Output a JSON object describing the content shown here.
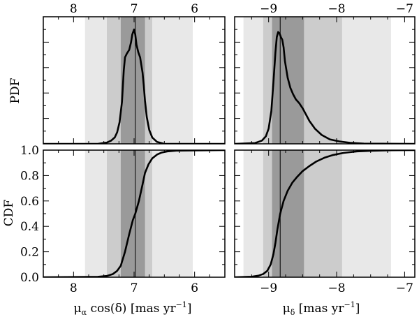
{
  "chart_data": [
    {
      "id": "pmra_pdf",
      "type": "line",
      "ylabel": "PDF",
      "x_reversed": true,
      "xlim": [
        8.5,
        5.5
      ],
      "ylim": [
        0,
        1.0
      ],
      "ticks_top": [
        "8",
        "7",
        "6"
      ],
      "tick_values_top": [
        8,
        7,
        6
      ],
      "bands": [
        {
          "from": 7.81,
          "to": 6.03,
          "shade": "#e8e8e8"
        },
        {
          "from": 7.45,
          "to": 6.7,
          "shade": "#cccccc"
        },
        {
          "from": 7.22,
          "to": 6.82,
          "shade": "#9a9a9a"
        }
      ],
      "median": 6.98,
      "series": [
        {
          "x": [
            8.5,
            7.6,
            7.45,
            7.38,
            7.32,
            7.28,
            7.24,
            7.2,
            7.17,
            7.15,
            7.12,
            7.08,
            7.05,
            7.03,
            7.0,
            6.98,
            6.96,
            6.93,
            6.9,
            6.88,
            6.86,
            6.84,
            6.82,
            6.79,
            6.75,
            6.7,
            6.62,
            6.5,
            6.2,
            5.5
          ],
          "y": [
            0.0,
            0.0,
            0.01,
            0.025,
            0.05,
            0.09,
            0.17,
            0.33,
            0.58,
            0.68,
            0.71,
            0.74,
            0.8,
            0.86,
            0.9,
            0.86,
            0.78,
            0.72,
            0.68,
            0.62,
            0.56,
            0.46,
            0.34,
            0.21,
            0.11,
            0.05,
            0.015,
            0.0,
            0.0,
            0.0
          ]
        }
      ]
    },
    {
      "id": "pmdec_pdf",
      "type": "line",
      "x_reversed": false,
      "xlim": [
        -9.5,
        -6.85
      ],
      "ylim": [
        0,
        1.0
      ],
      "ticks_top": [
        "−9",
        "−8",
        "−7"
      ],
      "tick_values_top": [
        -9,
        -8,
        -7
      ],
      "bands": [
        {
          "from": -9.37,
          "to": -7.2,
          "shade": "#e8e8e8"
        },
        {
          "from": -9.08,
          "to": -7.92,
          "shade": "#cccccc"
        },
        {
          "from": -8.95,
          "to": -8.48,
          "shade": "#9a9a9a"
        }
      ],
      "median": -8.83,
      "series": [
        {
          "x": [
            -9.5,
            -9.2,
            -9.1,
            -9.04,
            -9.0,
            -8.96,
            -8.93,
            -8.9,
            -8.88,
            -8.86,
            -8.84,
            -8.82,
            -8.8,
            -8.78,
            -8.76,
            -8.72,
            -8.68,
            -8.64,
            -8.6,
            -8.55,
            -8.5,
            -8.45,
            -8.4,
            -8.32,
            -8.22,
            -8.1,
            -7.95,
            -7.8,
            -7.6,
            -6.85
          ],
          "y": [
            0.0,
            0.006,
            0.025,
            0.06,
            0.12,
            0.26,
            0.48,
            0.72,
            0.84,
            0.88,
            0.87,
            0.84,
            0.82,
            0.76,
            0.65,
            0.52,
            0.44,
            0.39,
            0.35,
            0.32,
            0.28,
            0.23,
            0.18,
            0.12,
            0.07,
            0.035,
            0.018,
            0.008,
            0.002,
            0.0
          ]
        }
      ]
    },
    {
      "id": "pmra_cdf",
      "type": "line",
      "ylabel": "CDF",
      "xlabel": "μα cos(δ) [mas yr−1]",
      "x_reversed": true,
      "xlim": [
        8.5,
        5.5
      ],
      "ylim": [
        0,
        1.0
      ],
      "ticks_bottom": [
        "8",
        "7",
        "6"
      ],
      "tick_values_bottom": [
        8,
        7,
        6
      ],
      "y_ticks": [
        "0.0",
        "0.2",
        "0.4",
        "0.6",
        "0.8",
        "1.0"
      ],
      "y_tick_values": [
        0.0,
        0.2,
        0.4,
        0.6,
        0.8,
        1.0
      ],
      "bands": [
        {
          "from": 7.81,
          "to": 6.03,
          "shade": "#e8e8e8"
        },
        {
          "from": 7.45,
          "to": 6.7,
          "shade": "#cccccc"
        },
        {
          "from": 7.22,
          "to": 6.82,
          "shade": "#9a9a9a"
        }
      ],
      "median": 6.98,
      "series": [
        {
          "x": [
            8.5,
            7.6,
            7.45,
            7.35,
            7.28,
            7.22,
            7.15,
            7.08,
            7.02,
            6.98,
            6.92,
            6.86,
            6.82,
            6.76,
            6.7,
            6.62,
            6.55,
            6.45,
            6.3,
            5.5
          ],
          "y": [
            0.0,
            0.003,
            0.01,
            0.025,
            0.05,
            0.09,
            0.2,
            0.34,
            0.45,
            0.5,
            0.6,
            0.73,
            0.82,
            0.89,
            0.935,
            0.965,
            0.98,
            0.99,
            0.996,
            1.0
          ]
        }
      ]
    },
    {
      "id": "pmdec_cdf",
      "type": "line",
      "xlabel": "μδ [mas yr−1]",
      "x_reversed": false,
      "xlim": [
        -9.5,
        -6.85
      ],
      "ylim": [
        0,
        1.0
      ],
      "ticks_bottom": [
        "−9",
        "−8",
        "−7"
      ],
      "tick_values_bottom": [
        -9,
        -8,
        -7
      ],
      "bands": [
        {
          "from": -9.37,
          "to": -7.2,
          "shade": "#e8e8e8"
        },
        {
          "from": -9.08,
          "to": -7.92,
          "shade": "#cccccc"
        },
        {
          "from": -8.95,
          "to": -8.48,
          "shade": "#9a9a9a"
        }
      ],
      "median": -8.83,
      "series": [
        {
          "x": [
            -9.5,
            -9.25,
            -9.15,
            -9.08,
            -9.02,
            -8.97,
            -8.93,
            -8.9,
            -8.87,
            -8.83,
            -8.78,
            -8.72,
            -8.65,
            -8.58,
            -8.5,
            -8.4,
            -8.3,
            -8.18,
            -8.05,
            -7.9,
            -7.7,
            -7.5,
            -7.2,
            -6.85
          ],
          "y": [
            0.0,
            0.004,
            0.012,
            0.025,
            0.05,
            0.1,
            0.18,
            0.27,
            0.38,
            0.5,
            0.6,
            0.68,
            0.745,
            0.79,
            0.835,
            0.875,
            0.91,
            0.94,
            0.962,
            0.978,
            0.99,
            0.995,
            0.999,
            1.0
          ]
        }
      ]
    }
  ]
}
